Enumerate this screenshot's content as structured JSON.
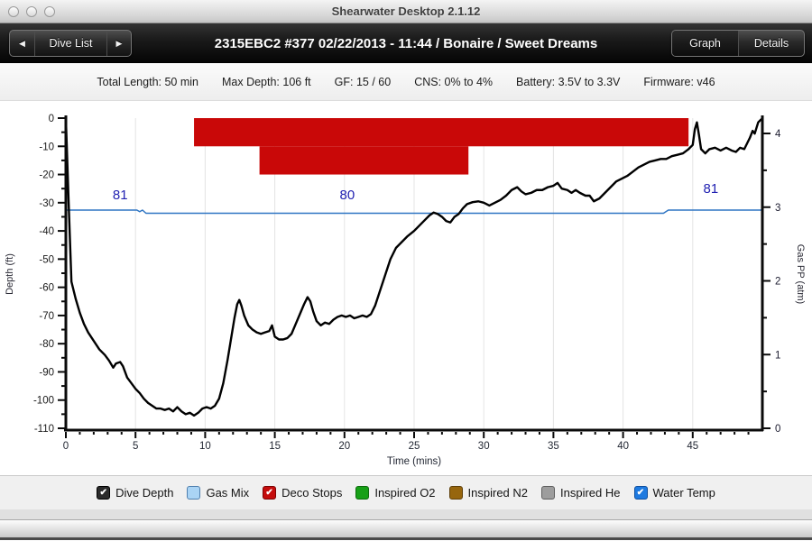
{
  "window": {
    "title": "Shearwater Desktop 2.1.12"
  },
  "navbar": {
    "prev_icon": "◀",
    "next_icon": "▶",
    "dive_list_label": "Dive List",
    "title": "2315EBC2 #377 02/22/2013 - 11:44  / Bonaire / Sweet Dreams",
    "graph_label": "Graph",
    "details_label": "Details"
  },
  "infobar": {
    "stats": [
      "Total Length: 50 min",
      "Max Depth: 106 ft",
      "GF: 15 / 60",
      "CNS: 0% to 4%",
      "Battery: 3.5V to 3.3V",
      "Firmware: v46"
    ]
  },
  "legend": {
    "items": [
      {
        "label": "Dive Depth",
        "color": "#2b2b2b",
        "border": "#000000",
        "checked": true
      },
      {
        "label": "Gas Mix",
        "color": "#aad4f5",
        "border": "#4f7fae",
        "checked": false
      },
      {
        "label": "Deco Stops",
        "color": "#c50d0d",
        "border": "#7c0202",
        "checked": true
      },
      {
        "label": "Inspired O2",
        "color": "#17a017",
        "border": "#0d6b0d",
        "checked": false
      },
      {
        "label": "Inspired N2",
        "color": "#97660e",
        "border": "#5f400a",
        "checked": false
      },
      {
        "label": "Inspired He",
        "color": "#9d9d9d",
        "border": "#5f5f5f",
        "checked": false
      },
      {
        "label": "Water Temp",
        "color": "#1e7ae0",
        "border": "#0f4f9e",
        "checked": true
      }
    ]
  },
  "chart_data": {
    "type": "line",
    "xlabel": "Time (mins)",
    "ylabel_left": "Depth (ft)",
    "ylabel_right": "Gas PP (atm)",
    "xlim": [
      0,
      50
    ],
    "x_major_tick_step": 5,
    "x_minor_tick_step": 1,
    "ylim_left": [
      -110,
      0
    ],
    "y_left_major_step": 10,
    "y_left_minor_step": 5,
    "ylim_right": [
      0,
      4
    ],
    "y_right_major_step": 1,
    "y_right_minor_step": 0.5,
    "grid": "vertical-major",
    "colors": {
      "depth": "#000000",
      "temp": "#2e75c3",
      "deco": "#c90808",
      "grid": "#e4e4e4",
      "temp_label": "#2222b2"
    },
    "deco_stops": [
      {
        "start_min": 9.2,
        "end_min": 44.7,
        "top_ft": 0,
        "bottom_ft": -10
      },
      {
        "start_min": 13.9,
        "end_min": 28.9,
        "top_ft": -10,
        "bottom_ft": -20
      }
    ],
    "series": [
      {
        "name": "Dive Depth",
        "unit": "ft",
        "points": [
          [
            0,
            0
          ],
          [
            0.2,
            -30
          ],
          [
            0.4,
            -58
          ],
          [
            0.7,
            -64
          ],
          [
            1,
            -69
          ],
          [
            1.3,
            -73
          ],
          [
            1.6,
            -76
          ],
          [
            2,
            -79
          ],
          [
            2.4,
            -82
          ],
          [
            2.8,
            -84
          ],
          [
            3.1,
            -86
          ],
          [
            3.4,
            -88.5
          ],
          [
            3.6,
            -87
          ],
          [
            3.9,
            -86.5
          ],
          [
            4.1,
            -88
          ],
          [
            4.4,
            -92
          ],
          [
            4.7,
            -94
          ],
          [
            5,
            -96
          ],
          [
            5.3,
            -97.5
          ],
          [
            5.6,
            -99.5
          ],
          [
            5.9,
            -101
          ],
          [
            6.2,
            -102
          ],
          [
            6.5,
            -103
          ],
          [
            6.8,
            -103
          ],
          [
            7.1,
            -103.5
          ],
          [
            7.4,
            -103
          ],
          [
            7.7,
            -104
          ],
          [
            8,
            -102.5
          ],
          [
            8.3,
            -104
          ],
          [
            8.6,
            -105
          ],
          [
            8.9,
            -104.5
          ],
          [
            9.2,
            -105.5
          ],
          [
            9.5,
            -104.5
          ],
          [
            9.8,
            -103
          ],
          [
            10.1,
            -102.5
          ],
          [
            10.4,
            -103
          ],
          [
            10.7,
            -102
          ],
          [
            11,
            -99.5
          ],
          [
            11.3,
            -94
          ],
          [
            11.6,
            -86
          ],
          [
            11.9,
            -77
          ],
          [
            12.1,
            -71
          ],
          [
            12.3,
            -66
          ],
          [
            12.45,
            -64.5
          ],
          [
            12.6,
            -66.5
          ],
          [
            12.8,
            -70
          ],
          [
            13.1,
            -73.5
          ],
          [
            13.4,
            -75
          ],
          [
            13.7,
            -76
          ],
          [
            14,
            -76.5
          ],
          [
            14.3,
            -76
          ],
          [
            14.6,
            -75.5
          ],
          [
            14.8,
            -73.5
          ],
          [
            15,
            -77.5
          ],
          [
            15.3,
            -78.5
          ],
          [
            15.6,
            -78.5
          ],
          [
            15.9,
            -78
          ],
          [
            16.2,
            -76.5
          ],
          [
            16.5,
            -73
          ],
          [
            16.8,
            -69.5
          ],
          [
            17.1,
            -66
          ],
          [
            17.35,
            -63.5
          ],
          [
            17.55,
            -65
          ],
          [
            17.75,
            -68.5
          ],
          [
            18,
            -72
          ],
          [
            18.3,
            -73.5
          ],
          [
            18.6,
            -72.5
          ],
          [
            18.9,
            -73
          ],
          [
            19.2,
            -71.5
          ],
          [
            19.5,
            -70.5
          ],
          [
            19.8,
            -70
          ],
          [
            20.1,
            -70.5
          ],
          [
            20.4,
            -70
          ],
          [
            20.7,
            -71
          ],
          [
            21,
            -70.5
          ],
          [
            21.3,
            -70
          ],
          [
            21.6,
            -70.5
          ],
          [
            21.9,
            -69.5
          ],
          [
            22.2,
            -66.5
          ],
          [
            22.5,
            -62
          ],
          [
            22.9,
            -56
          ],
          [
            23.3,
            -50
          ],
          [
            23.7,
            -46
          ],
          [
            24.1,
            -44
          ],
          [
            24.5,
            -42
          ],
          [
            25,
            -40
          ],
          [
            25.4,
            -38
          ],
          [
            25.8,
            -36
          ],
          [
            26.1,
            -34.5
          ],
          [
            26.4,
            -33.5
          ],
          [
            26.7,
            -34
          ],
          [
            27,
            -35
          ],
          [
            27.3,
            -36.5
          ],
          [
            27.6,
            -37
          ],
          [
            27.9,
            -35
          ],
          [
            28.2,
            -34
          ],
          [
            28.5,
            -32
          ],
          [
            28.8,
            -30.5
          ],
          [
            29.2,
            -29.8
          ],
          [
            29.6,
            -29.5
          ],
          [
            30,
            -30
          ],
          [
            30.4,
            -31
          ],
          [
            30.8,
            -30
          ],
          [
            31.2,
            -29
          ],
          [
            31.6,
            -27.5
          ],
          [
            32,
            -25.5
          ],
          [
            32.4,
            -24.5
          ],
          [
            32.7,
            -26
          ],
          [
            33,
            -27
          ],
          [
            33.4,
            -26.5
          ],
          [
            33.8,
            -25.5
          ],
          [
            34.2,
            -25.5
          ],
          [
            34.6,
            -24.5
          ],
          [
            35,
            -24
          ],
          [
            35.3,
            -23
          ],
          [
            35.6,
            -25
          ],
          [
            36,
            -25.5
          ],
          [
            36.3,
            -26.5
          ],
          [
            36.6,
            -25.5
          ],
          [
            36.9,
            -26.5
          ],
          [
            37.3,
            -27.5
          ],
          [
            37.6,
            -27.5
          ],
          [
            37.9,
            -29.5
          ],
          [
            38.3,
            -28.5
          ],
          [
            38.7,
            -26.5
          ],
          [
            39.1,
            -24.5
          ],
          [
            39.5,
            -22.5
          ],
          [
            39.9,
            -21.5
          ],
          [
            40.3,
            -20.5
          ],
          [
            40.7,
            -19
          ],
          [
            41.1,
            -17.5
          ],
          [
            41.5,
            -16.5
          ],
          [
            41.9,
            -15.5
          ],
          [
            42.3,
            -15
          ],
          [
            42.7,
            -14.5
          ],
          [
            43.1,
            -14.5
          ],
          [
            43.5,
            -13.5
          ],
          [
            43.9,
            -13
          ],
          [
            44.3,
            -12.5
          ],
          [
            44.7,
            -11
          ],
          [
            45,
            -9.5
          ],
          [
            45.15,
            -4
          ],
          [
            45.3,
            -1.5
          ],
          [
            45.45,
            -6
          ],
          [
            45.6,
            -11
          ],
          [
            45.9,
            -12.5
          ],
          [
            46.2,
            -11
          ],
          [
            46.6,
            -10.5
          ],
          [
            47,
            -11.5
          ],
          [
            47.4,
            -10.5
          ],
          [
            47.8,
            -11.5
          ],
          [
            48.1,
            -12
          ],
          [
            48.4,
            -10.5
          ],
          [
            48.7,
            -11
          ],
          [
            48.9,
            -9
          ],
          [
            49.1,
            -7
          ],
          [
            49.3,
            -4.5
          ],
          [
            49.45,
            -5.5
          ],
          [
            49.7,
            -1.5
          ],
          [
            49.9,
            -0.5
          ]
        ]
      },
      {
        "name": "Water Temp",
        "unit": "F",
        "points": [
          [
            0,
            81
          ],
          [
            5.1,
            81
          ],
          [
            5.3,
            80.5
          ],
          [
            5.5,
            81
          ],
          [
            5.75,
            80
          ],
          [
            42.9,
            80
          ],
          [
            43.25,
            81
          ],
          [
            50,
            81
          ]
        ]
      }
    ],
    "temp_labels": [
      {
        "t": 3.9,
        "text": "81"
      },
      {
        "t": 20.2,
        "text": "80"
      },
      {
        "t": 46.3,
        "text": "81"
      }
    ]
  }
}
